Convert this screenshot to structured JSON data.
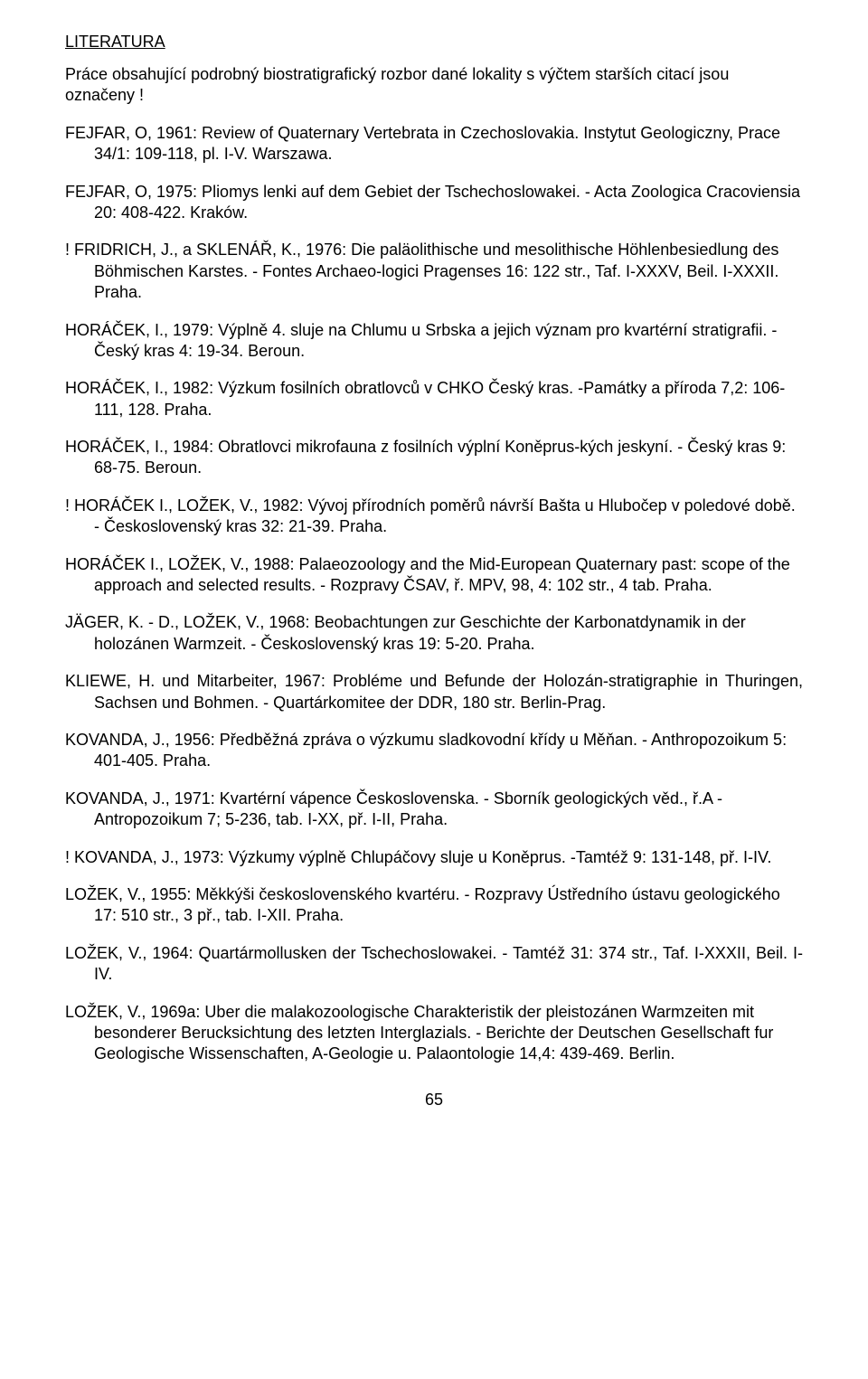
{
  "title": "LITERATURA",
  "intro": "Práce obsahující podrobný biostratigrafický rozbor dané lokality s výčtem starších citací jsou označeny !",
  "refs": [
    {
      "text": "FEJFAR, O, 1961: Review of Quaternary Vertebrata in Czechoslovakia. Instytut Geologiczny, Prace 34/1: 109-118, pl. I-V. Warszawa.",
      "justify": false
    },
    {
      "text": "FEJFAR, O, 1975: Pliomys lenki auf dem Gebiet der Tschechoslowakei. - Acta Zoologica Cracoviensia 20: 408-422. Kraków.",
      "justify": false
    },
    {
      "text": "! FRIDRICH, J., a SKLENÁŘ, K., 1976: Die paläolithische und mesolithische Höhlenbesiedlung des Böhmischen Karstes. - Fontes Archaeo-logici Pragenses 16: 122 str., Taf. I-XXXV, Beil. I-XXXII. Praha.",
      "justify": false
    },
    {
      "text": "HORÁČEK, I., 1979: Výplně 4. sluje na Chlumu u Srbska a jejich význam pro kvartérní stratigrafii. - Český kras 4: 19-34. Beroun.",
      "justify": false
    },
    {
      "text": "HORÁČEK, I., 1982: Výzkum fosilních obratlovců v CHKO Český kras. -Památky a příroda 7,2: 106-111, 128. Praha.",
      "justify": false
    },
    {
      "text": "HORÁČEK, I., 1984: Obratlovci mikrofauna z fosilních výplní Koněprus-kých jeskyní. - Český kras 9: 68-75. Beroun.",
      "justify": false
    },
    {
      "text": "! HORÁČEK I., LOŽEK, V., 1982: Vývoj přírodních poměrů návrší Bašta u Hlubočep v poledové době. - Československý kras 32: 21-39. Praha.",
      "justify": false
    },
    {
      "text": "HORÁČEK I., LOŽEK, V., 1988: Palaeozoology and the Mid-European Quaternary past: scope of the approach and selected results. - Rozpravy ČSAV, ř. MPV, 98, 4: 102 str., 4 tab. Praha.",
      "justify": false
    },
    {
      "text": "JÄGER, K. - D., LOŽEK, V., 1968: Beobachtungen zur Geschichte der Karbonatdynamik in der holozánen Warmzeit. - Československý kras 19: 5-20. Praha.",
      "justify": false
    },
    {
      "text": "KLIEWE, H. und Mitarbeiter, 1967: Probléme und Befunde der Holozán-stratigraphie in Thuringen, Sachsen und Bohmen. - Quartárkomitee der DDR, 180 str. Berlin-Prag.",
      "justify": true
    },
    {
      "text": "KOVANDA, J., 1956: Předběžná zpráva o výzkumu sladkovodní křídy u Měňan. - Anthropozoikum 5: 401-405. Praha.",
      "justify": false
    },
    {
      "text": "KOVANDA, J., 1971: Kvartérní vápence Československa. - Sborník geologických věd., ř.A - Antropozoikum 7; 5-236, tab. I-XX, př. I-II, Praha.",
      "justify": false
    },
    {
      "text": "! KOVANDA, J., 1973: Výzkumy výplně Chlupáčovy sluje u Koněprus. -Tamtéž 9: 131-148, př. I-IV.",
      "justify": false
    },
    {
      "text": "LOŽEK, V., 1955: Měkkýši československého kvartéru. - Rozpravy Ústředního ústavu geologického 17: 510 str., 3 př., tab. I-XII. Praha.",
      "justify": false
    },
    {
      "text": "LOŽEK, V., 1964: Quartármollusken der Tschechoslowakei. - Tamtéž 31: 374 str., Taf. I-XXXII, Beil. I-IV.",
      "justify": true
    },
    {
      "text": "LOŽEK, V., 1969a: Uber die malakozoologische Charakteristik der pleistozánen Warmzeiten mit besonderer Berucksichtung des letzten Interglazials. - Berichte der Deutschen Gesellschaft fur Geologische Wissenschaften, A-Geologie u. Palaontologie 14,4: 439-469. Berlin.",
      "justify": false
    }
  ],
  "pagenum": "65"
}
